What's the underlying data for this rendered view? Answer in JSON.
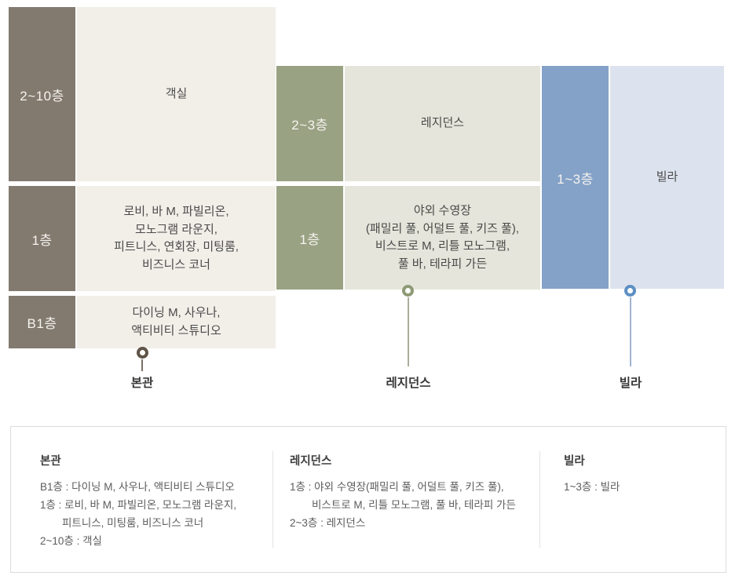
{
  "diagram": {
    "buildings": [
      {
        "callout": "본관",
        "label_bg": "#827a6f",
        "content_bg": "#f2efe9",
        "marker_color": "#5f5347",
        "rows": [
          {
            "floor": "2~10층",
            "content": "객실"
          },
          {
            "floor": "1층",
            "content": "로비, 바 M, 파빌리온,\n모노그램 라운지,\n피트니스, 연회장, 미팅룸,\n비즈니스 코너"
          },
          {
            "floor": "B1층",
            "content": "다이닝 M, 사우나,\n액티비티 스튜디오"
          }
        ]
      },
      {
        "callout": "레지던스",
        "label_bg": "#99a283",
        "content_bg": "#e5e5db",
        "marker_color": "#8e9a75",
        "rows": [
          {
            "floor": "2~3층",
            "content": "레지던스"
          },
          {
            "floor": "1층",
            "content": "야외 수영장\n(패밀리 풀, 어덜트 풀, 키즈 풀),\n비스트로 M, 리틀 모노그램,\n풀 바, 테라피 가든"
          }
        ]
      },
      {
        "callout": "빌라",
        "label_bg": "#84a2c8",
        "content_bg": "#dde3ee",
        "marker_color": "#5d8fc4",
        "rows": [
          {
            "floor": "1~3층",
            "content": "빌라"
          }
        ]
      }
    ]
  },
  "legend": {
    "columns": [
      {
        "heading": "본관",
        "lines": [
          {
            "text": "B1층 : 다이닝 M, 사우나, 액티비티 스튜디오",
            "indent": false
          },
          {
            "text": "1층 : 로비, 바 M, 파빌리온, 모노그램 라운지,",
            "indent": false
          },
          {
            "text": "피트니스, 미팅룸, 비즈니스 코너",
            "indent": true
          },
          {
            "text": "2~10층 : 객실",
            "indent": false
          }
        ]
      },
      {
        "heading": "레지던스",
        "lines": [
          {
            "text": "1층 : 야외 수영장(패밀리 풀, 어덜트 풀, 키즈 풀),",
            "indent": false
          },
          {
            "text": "비스트로 M, 리틀 모노그램, 풀 바, 테라피 가든",
            "indent": true
          },
          {
            "text": "2~3층 : 레지던스",
            "indent": false
          }
        ]
      },
      {
        "heading": "빌라",
        "lines": [
          {
            "text": "1~3층 : 빌라",
            "indent": false
          }
        ]
      }
    ]
  }
}
